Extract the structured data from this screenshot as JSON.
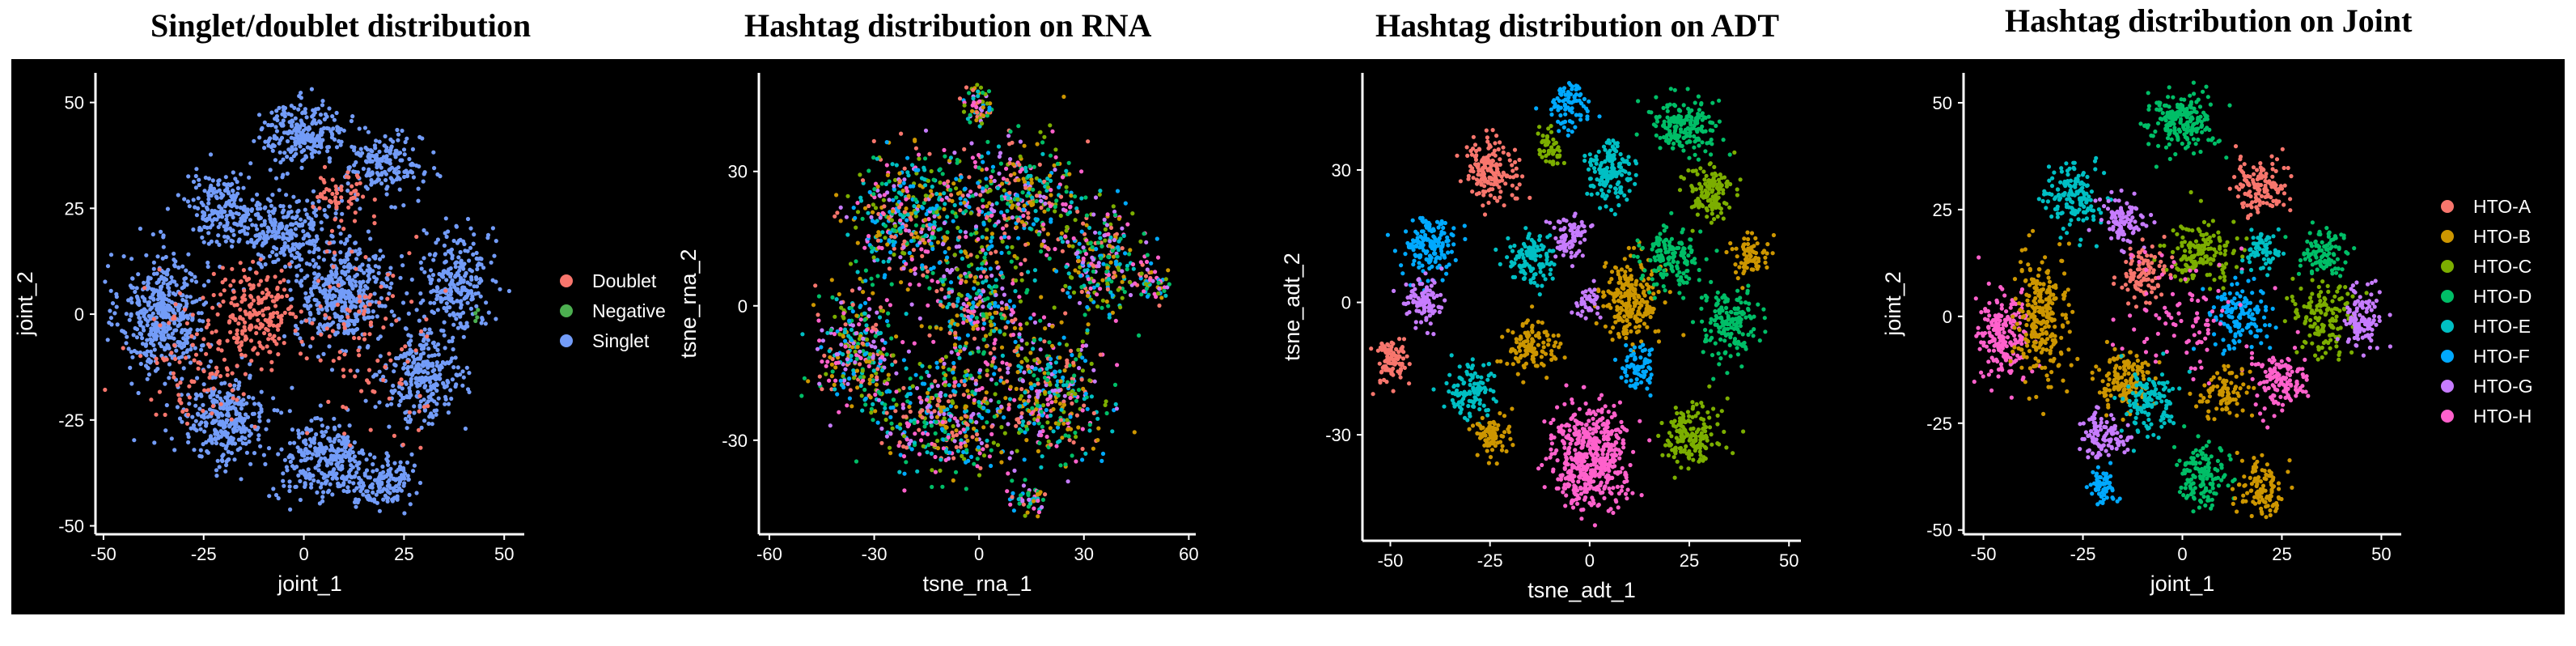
{
  "titles": {
    "p1": "Singlet/doublet distribution",
    "p2": "Hashtag distribution on RNA",
    "p3": "Hashtag distribution on ADT",
    "p4": "Hashtag distribution on Joint"
  },
  "chart_data": [
    {
      "type": "scatter",
      "title": "Singlet/doublet distribution",
      "xlabel": "joint_1",
      "ylabel": "joint_2",
      "xlim": [
        -52,
        55
      ],
      "ylim": [
        -52,
        57
      ],
      "xticks": [
        "-50",
        "-25",
        "0",
        "25",
        "50"
      ],
      "yticks": [
        "-50",
        "-25",
        "0",
        "25",
        "50"
      ],
      "grid": false,
      "legend_position": "right",
      "series": [
        {
          "name": "Doublet",
          "color": "#f8766d"
        },
        {
          "name": "Negative",
          "color": "#4caf50"
        },
        {
          "name": "Singlet",
          "color": "#739cf8"
        }
      ],
      "clusters": [
        {
          "series": "Singlet",
          "center": [
            -35,
            0
          ],
          "spread": [
            9,
            12
          ],
          "count": 460
        },
        {
          "series": "Singlet",
          "center": [
            -20,
            25
          ],
          "spread": [
            8,
            7
          ],
          "count": 200
        },
        {
          "series": "Singlet",
          "center": [
            0,
            43
          ],
          "spread": [
            9,
            6
          ],
          "count": 240
        },
        {
          "series": "Singlet",
          "center": [
            20,
            35
          ],
          "spread": [
            8,
            6
          ],
          "count": 180
        },
        {
          "series": "Singlet",
          "center": [
            10,
            5
          ],
          "spread": [
            10,
            10
          ],
          "count": 420
        },
        {
          "series": "Singlet",
          "center": [
            -20,
            -25
          ],
          "spread": [
            9,
            9
          ],
          "count": 300
        },
        {
          "series": "Singlet",
          "center": [
            5,
            -35
          ],
          "spread": [
            10,
            8
          ],
          "count": 300
        },
        {
          "series": "Singlet",
          "center": [
            30,
            -15
          ],
          "spread": [
            8,
            9
          ],
          "count": 280
        },
        {
          "series": "Singlet",
          "center": [
            38,
            8
          ],
          "spread": [
            7,
            10
          ],
          "count": 260
        },
        {
          "series": "Singlet",
          "center": [
            -5,
            20
          ],
          "spread": [
            10,
            8
          ],
          "count": 260
        },
        {
          "series": "Singlet",
          "center": [
            20,
            -40
          ],
          "spread": [
            6,
            5
          ],
          "count": 140
        },
        {
          "series": "Doublet",
          "center": [
            -12,
            0
          ],
          "spread": [
            7,
            9
          ],
          "count": 170
        },
        {
          "series": "Doublet",
          "center": [
            10,
            28
          ],
          "spread": [
            6,
            5
          ],
          "count": 60
        },
        {
          "series": "Doublet",
          "center": [
            -25,
            -10
          ],
          "spread": [
            14,
            14
          ],
          "count": 120
        },
        {
          "series": "Doublet",
          "center": [
            15,
            -5
          ],
          "spread": [
            18,
            18
          ],
          "count": 120
        },
        {
          "series": "Negative",
          "center": [
            45,
            0
          ],
          "spread": [
            2,
            3
          ],
          "count": 4
        }
      ]
    },
    {
      "type": "scatter",
      "title": "Hashtag distribution on RNA",
      "xlabel": "tsne_rna_1",
      "ylabel": "tsne_rna_2",
      "xlim": [
        -63,
        62
      ],
      "ylim": [
        -51,
        52
      ],
      "xticks": [
        "-60",
        "-30",
        "0",
        "30",
        "60"
      ],
      "yticks": [
        "-30",
        "0",
        "30"
      ],
      "grid": false,
      "mixed": true,
      "series": [
        {
          "name": "HTO-A",
          "color": "#f8766d"
        },
        {
          "name": "HTO-B",
          "color": "#cd9600"
        },
        {
          "name": "HTO-C",
          "color": "#7cae00"
        },
        {
          "name": "HTO-D",
          "color": "#00be67"
        },
        {
          "name": "HTO-E",
          "color": "#00bfc4"
        },
        {
          "name": "HTO-F",
          "color": "#00a9ff"
        },
        {
          "name": "HTO-G",
          "color": "#c77cff"
        },
        {
          "name": "HTO-H",
          "color": "#ff61cc"
        }
      ],
      "clusters": [
        {
          "center": [
            -20,
            20
          ],
          "spread": [
            14,
            12
          ],
          "count": 420
        },
        {
          "center": [
            10,
            25
          ],
          "spread": [
            16,
            10
          ],
          "count": 380
        },
        {
          "center": [
            -35,
            -10
          ],
          "spread": [
            10,
            12
          ],
          "count": 300
        },
        {
          "center": [
            -10,
            -25
          ],
          "spread": [
            16,
            12
          ],
          "count": 420
        },
        {
          "center": [
            20,
            -20
          ],
          "spread": [
            14,
            12
          ],
          "count": 360
        },
        {
          "center": [
            35,
            10
          ],
          "spread": [
            10,
            10
          ],
          "count": 260
        },
        {
          "center": [
            0,
            0
          ],
          "spread": [
            12,
            12
          ],
          "count": 320
        },
        {
          "center": [
            0,
            45
          ],
          "spread": [
            4,
            4
          ],
          "count": 60
        },
        {
          "center": [
            50,
            5
          ],
          "spread": [
            5,
            3
          ],
          "count": 50
        },
        {
          "center": [
            15,
            -43
          ],
          "spread": [
            5,
            3
          ],
          "count": 50
        }
      ]
    },
    {
      "type": "scatter",
      "title": "Hashtag distribution on ADT",
      "xlabel": "tsne_adt_1",
      "ylabel": "tsne_adt_2",
      "xlim": [
        -57,
        53
      ],
      "ylim": [
        -54,
        52
      ],
      "xticks": [
        "-50",
        "-25",
        "0",
        "25",
        "50"
      ],
      "yticks": [
        "-30",
        "0",
        "30"
      ],
      "grid": false,
      "series": [
        {
          "name": "HTO-A",
          "color": "#f8766d"
        },
        {
          "name": "HTO-B",
          "color": "#cd9600"
        },
        {
          "name": "HTO-C",
          "color": "#7cae00"
        },
        {
          "name": "HTO-D",
          "color": "#00be67"
        },
        {
          "name": "HTO-E",
          "color": "#00bfc4"
        },
        {
          "name": "HTO-F",
          "color": "#00a9ff"
        },
        {
          "name": "HTO-G",
          "color": "#c77cff"
        },
        {
          "name": "HTO-H",
          "color": "#ff61cc"
        }
      ],
      "clusters": [
        {
          "series": "HTO-H",
          "center": [
            0,
            -35
          ],
          "spread": [
            8,
            9
          ],
          "count": 520
        },
        {
          "series": "HTO-A",
          "center": [
            -25,
            30
          ],
          "spread": [
            5,
            6
          ],
          "count": 170
        },
        {
          "series": "HTO-A",
          "center": [
            -50,
            -13
          ],
          "spread": [
            4,
            4
          ],
          "count": 100
        },
        {
          "series": "HTO-F",
          "center": [
            -40,
            12
          ],
          "spread": [
            6,
            6
          ],
          "count": 160
        },
        {
          "series": "HTO-G",
          "center": [
            -42,
            0
          ],
          "spread": [
            4,
            5
          ],
          "count": 100
        },
        {
          "series": "HTO-F",
          "center": [
            -5,
            45
          ],
          "spread": [
            4,
            5
          ],
          "count": 90
        },
        {
          "series": "HTO-D",
          "center": [
            23,
            40
          ],
          "spread": [
            7,
            5
          ],
          "count": 180
        },
        {
          "series": "HTO-E",
          "center": [
            5,
            30
          ],
          "spread": [
            5,
            6
          ],
          "count": 160
        },
        {
          "series": "HTO-C",
          "center": [
            30,
            25
          ],
          "spread": [
            5,
            5
          ],
          "count": 130
        },
        {
          "series": "HTO-B",
          "center": [
            10,
            0
          ],
          "spread": [
            6,
            8
          ],
          "count": 230
        },
        {
          "series": "HTO-E",
          "center": [
            -15,
            10
          ],
          "spread": [
            5,
            5
          ],
          "count": 130
        },
        {
          "series": "HTO-B",
          "center": [
            -15,
            -10
          ],
          "spread": [
            5,
            5
          ],
          "count": 120
        },
        {
          "series": "HTO-D",
          "center": [
            35,
            -5
          ],
          "spread": [
            6,
            7
          ],
          "count": 160
        },
        {
          "series": "HTO-C",
          "center": [
            25,
            -30
          ],
          "spread": [
            6,
            6
          ],
          "count": 170
        },
        {
          "series": "HTO-E",
          "center": [
            -30,
            -20
          ],
          "spread": [
            5,
            6
          ],
          "count": 110
        },
        {
          "series": "HTO-B",
          "center": [
            -25,
            -30
          ],
          "spread": [
            4,
            4
          ],
          "count": 80
        },
        {
          "series": "HTO-G",
          "center": [
            -5,
            15
          ],
          "spread": [
            4,
            4
          ],
          "count": 90
        },
        {
          "series": "HTO-D",
          "center": [
            20,
            10
          ],
          "spread": [
            6,
            6
          ],
          "count": 150
        },
        {
          "series": "HTO-F",
          "center": [
            12,
            -15
          ],
          "spread": [
            4,
            4
          ],
          "count": 70
        },
        {
          "series": "HTO-B",
          "center": [
            40,
            10
          ],
          "spread": [
            4,
            4
          ],
          "count": 70
        },
        {
          "series": "HTO-G",
          "center": [
            0,
            0
          ],
          "spread": [
            3,
            3
          ],
          "count": 40
        },
        {
          "series": "HTO-C",
          "center": [
            -10,
            35
          ],
          "spread": [
            3,
            4
          ],
          "count": 50
        }
      ]
    },
    {
      "type": "scatter",
      "title": "Hashtag distribution on Joint",
      "xlabel": "joint_1",
      "ylabel": "joint_2",
      "xlim": [
        -55,
        55
      ],
      "ylim": [
        -51,
        57
      ],
      "xticks": [
        "-50",
        "-25",
        "0",
        "25",
        "50"
      ],
      "yticks": [
        "-50",
        "-25",
        "0",
        "25",
        "50"
      ],
      "grid": false,
      "legend_position": "right",
      "series": [
        {
          "name": "HTO-A",
          "color": "#f8766d"
        },
        {
          "name": "HTO-B",
          "color": "#cd9600"
        },
        {
          "name": "HTO-C",
          "color": "#7cae00"
        },
        {
          "name": "HTO-D",
          "color": "#00be67"
        },
        {
          "name": "HTO-E",
          "color": "#00bfc4"
        },
        {
          "name": "HTO-F",
          "color": "#00a9ff"
        },
        {
          "name": "HTO-G",
          "color": "#c77cff"
        },
        {
          "name": "HTO-H",
          "color": "#ff61cc"
        }
      ],
      "clusters": [
        {
          "series": "HTO-H",
          "center": [
            -45,
            -5
          ],
          "spread": [
            5,
            9
          ],
          "count": 200
        },
        {
          "series": "HTO-B",
          "center": [
            -35,
            0
          ],
          "spread": [
            6,
            12
          ],
          "count": 260
        },
        {
          "series": "HTO-D",
          "center": [
            0,
            45
          ],
          "spread": [
            7,
            6
          ],
          "count": 200
        },
        {
          "series": "HTO-E",
          "center": [
            -28,
            28
          ],
          "spread": [
            6,
            6
          ],
          "count": 150
        },
        {
          "series": "HTO-G",
          "center": [
            -15,
            22
          ],
          "spread": [
            5,
            5
          ],
          "count": 100
        },
        {
          "series": "HTO-A",
          "center": [
            20,
            30
          ],
          "spread": [
            6,
            6
          ],
          "count": 130
        },
        {
          "series": "HTO-C",
          "center": [
            5,
            15
          ],
          "spread": [
            7,
            6
          ],
          "count": 150
        },
        {
          "series": "HTO-B",
          "center": [
            -15,
            -15
          ],
          "spread": [
            6,
            6
          ],
          "count": 140
        },
        {
          "series": "HTO-E",
          "center": [
            -8,
            -20
          ],
          "spread": [
            5,
            6
          ],
          "count": 130
        },
        {
          "series": "HTO-G",
          "center": [
            -20,
            -28
          ],
          "spread": [
            5,
            5
          ],
          "count": 100
        },
        {
          "series": "HTO-F",
          "center": [
            -20,
            -40
          ],
          "spread": [
            3,
            4
          ],
          "count": 60
        },
        {
          "series": "HTO-D",
          "center": [
            5,
            -38
          ],
          "spread": [
            6,
            6
          ],
          "count": 140
        },
        {
          "series": "HTO-B",
          "center": [
            20,
            -40
          ],
          "spread": [
            5,
            5
          ],
          "count": 110
        },
        {
          "series": "HTO-H",
          "center": [
            25,
            -15
          ],
          "spread": [
            6,
            6
          ],
          "count": 130
        },
        {
          "series": "HTO-C",
          "center": [
            35,
            0
          ],
          "spread": [
            6,
            7
          ],
          "count": 140
        },
        {
          "series": "HTO-G",
          "center": [
            45,
            0
          ],
          "spread": [
            4,
            6
          ],
          "count": 110
        },
        {
          "series": "HTO-D",
          "center": [
            35,
            15
          ],
          "spread": [
            5,
            5
          ],
          "count": 100
        },
        {
          "series": "HTO-F",
          "center": [
            15,
            0
          ],
          "spread": [
            6,
            6
          ],
          "count": 130
        },
        {
          "series": "HTO-A",
          "center": [
            -10,
            10
          ],
          "spread": [
            5,
            5
          ],
          "count": 100
        },
        {
          "series": "HTO-H",
          "center": [
            0,
            0
          ],
          "spread": [
            12,
            12
          ],
          "count": 90
        },
        {
          "series": "HTO-B",
          "center": [
            10,
            -18
          ],
          "spread": [
            5,
            5
          ],
          "count": 90
        },
        {
          "series": "HTO-E",
          "center": [
            20,
            15
          ],
          "spread": [
            4,
            4
          ],
          "count": 70
        }
      ]
    }
  ]
}
